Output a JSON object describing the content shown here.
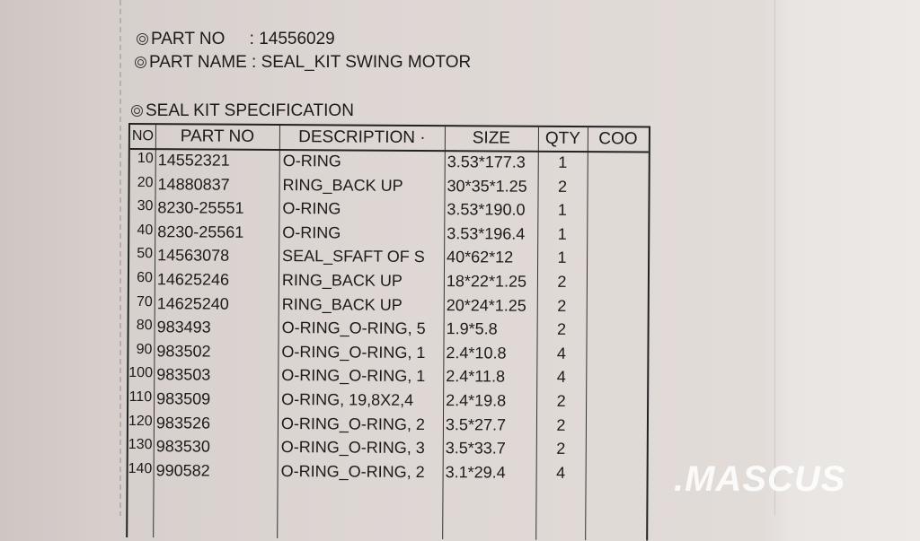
{
  "header": {
    "part_no_label": "PART NO",
    "part_no_value": ": 14556029",
    "part_name_label": "PART NAME",
    "part_name_value": ": SEAL_KIT SWING MOTOR",
    "spec_title": "SEAL KIT SPECIFICATION"
  },
  "table": {
    "columns": [
      "NO",
      "PART NO",
      "DESCRIPTION ·",
      "SIZE",
      "QTY",
      "COO"
    ],
    "rows": [
      {
        "no": "10",
        "part_no": "14552321",
        "description": "O-RING",
        "size": "3.53*177.3",
        "qty": "1",
        "coo": ""
      },
      {
        "no": "20",
        "part_no": "14880837",
        "description": "RING_BACK UP",
        "size": "30*35*1.25",
        "qty": "2",
        "coo": ""
      },
      {
        "no": "30",
        "part_no": "8230-25551",
        "description": "O-RING",
        "size": "3.53*190.0",
        "qty": "1",
        "coo": ""
      },
      {
        "no": "40",
        "part_no": "8230-25561",
        "description": "O-RING",
        "size": "3.53*196.4",
        "qty": "1",
        "coo": ""
      },
      {
        "no": "50",
        "part_no": "14563078",
        "description": "SEAL_SFAFT OF S",
        "size": "40*62*12",
        "qty": "1",
        "coo": ""
      },
      {
        "no": "60",
        "part_no": "14625246",
        "description": "RING_BACK UP",
        "size": "18*22*1.25",
        "qty": "2",
        "coo": ""
      },
      {
        "no": "70",
        "part_no": "14625240",
        "description": "RING_BACK UP",
        "size": "20*24*1.25",
        "qty": "2",
        "coo": ""
      },
      {
        "no": "80",
        "part_no": "983493",
        "description": "O-RING_O-RING, 5",
        "size": "1.9*5.8",
        "qty": "2",
        "coo": ""
      },
      {
        "no": "90",
        "part_no": "983502",
        "description": "O-RING_O-RING, 1",
        "size": "2.4*10.8",
        "qty": "4",
        "coo": ""
      },
      {
        "no": "100",
        "part_no": "983503",
        "description": "O-RING_O-RING, 1",
        "size": "2.4*11.8",
        "qty": "4",
        "coo": ""
      },
      {
        "no": "110",
        "part_no": "983509",
        "description": "O-RING, 19,8X2,4",
        "size": "2.4*19.8",
        "qty": "2",
        "coo": ""
      },
      {
        "no": "120",
        "part_no": "983526",
        "description": "O-RING_O-RING, 2",
        "size": "3.5*27.7",
        "qty": "2",
        "coo": ""
      },
      {
        "no": "130",
        "part_no": "983530",
        "description": "O-RING_O-RING, 3",
        "size": "3.5*33.7",
        "qty": "2",
        "coo": ""
      },
      {
        "no": "140",
        "part_no": "990582",
        "description": "O-RING_O-RING, 2",
        "size": "3.1*29.4",
        "qty": "4",
        "coo": ""
      }
    ]
  },
  "watermark": ".MASCUS"
}
